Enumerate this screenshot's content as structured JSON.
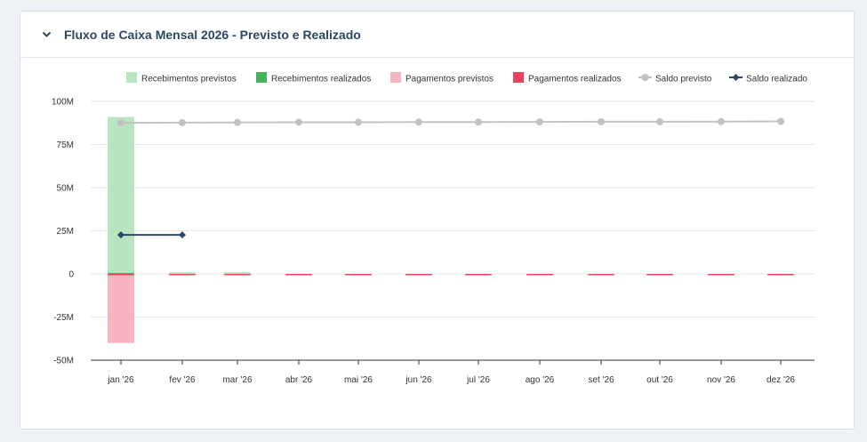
{
  "card": {
    "title": "Fluxo de Caixa Mensal 2026 - Previsto e Realizado",
    "collapse_icon": "chevron-down-icon"
  },
  "chart_data": {
    "type": "bar",
    "categories": [
      "jan '26",
      "fev '26",
      "mar '26",
      "abr '26",
      "mai '26",
      "jun '26",
      "jul '26",
      "ago '26",
      "set '26",
      "out '26",
      "nov '26",
      "dez '26"
    ],
    "y_ticks": [
      "100M",
      "75M",
      "50M",
      "25M",
      "0",
      "-25M",
      "-50M"
    ],
    "ylim": [
      -50,
      100
    ],
    "y_unit": "M",
    "grid": true,
    "legend_position": "top-right",
    "series": [
      {
        "name": "Recebimentos previstos",
        "kind": "bar",
        "color": "#b9e4c0",
        "values": [
          91,
          1,
          1,
          0,
          0,
          0,
          0,
          0,
          0,
          0,
          0,
          0
        ]
      },
      {
        "name": "Recebimentos realizados",
        "kind": "bar",
        "color": "#45b35e",
        "values": [
          0.6,
          0,
          0,
          0,
          0,
          0,
          0,
          0,
          0,
          0,
          0,
          0
        ]
      },
      {
        "name": "Pagamentos previstos",
        "kind": "bar",
        "color": "#f8b3c0",
        "values": [
          -40,
          -0.5,
          -0.5,
          -0.5,
          -0.5,
          -0.5,
          -0.5,
          -0.5,
          -0.5,
          -0.5,
          -0.5,
          -0.5
        ]
      },
      {
        "name": "Pagamentos realizados",
        "kind": "bar",
        "color": "#e5445f",
        "values": [
          -0.3,
          -0.2,
          -0.2,
          -0.2,
          -0.2,
          -0.2,
          -0.2,
          -0.2,
          -0.2,
          -0.2,
          -0.2,
          -0.2
        ]
      },
      {
        "name": "Saldo previsto",
        "kind": "line",
        "marker": "circle",
        "color": "#c2c2c2",
        "values": [
          87.5,
          87.7,
          87.8,
          87.9,
          87.9,
          88.0,
          88.0,
          88.1,
          88.2,
          88.2,
          88.3,
          88.4
        ]
      },
      {
        "name": "Saldo realizado",
        "kind": "line",
        "marker": "diamond",
        "color": "#2c4766",
        "values": [
          22.6,
          22.6,
          null,
          null,
          null,
          null,
          null,
          null,
          null,
          null,
          null,
          null
        ]
      }
    ]
  }
}
